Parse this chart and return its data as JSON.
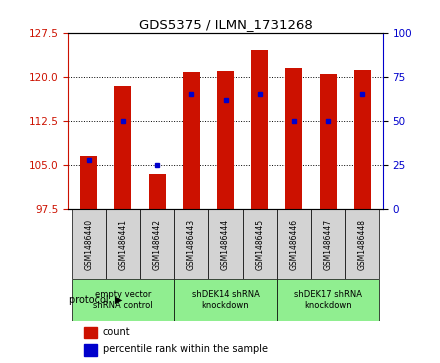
{
  "title": "GDS5375 / ILMN_1731268",
  "samples": [
    "GSM1486440",
    "GSM1486441",
    "GSM1486442",
    "GSM1486443",
    "GSM1486444",
    "GSM1486445",
    "GSM1486446",
    "GSM1486447",
    "GSM1486448"
  ],
  "bar_heights": [
    106.5,
    118.5,
    103.5,
    120.8,
    121.0,
    124.5,
    121.5,
    120.5,
    121.2
  ],
  "bar_base": 97.5,
  "percentile_pct": [
    28,
    50,
    25,
    65,
    62,
    65,
    50,
    50,
    65
  ],
  "bar_color": "#cc1100",
  "dot_color": "#0000cc",
  "ylim_left": [
    97.5,
    127.5
  ],
  "ylim_right": [
    0,
    100
  ],
  "yticks_left": [
    97.5,
    105.0,
    112.5,
    120.0,
    127.5
  ],
  "yticks_right": [
    0,
    25,
    50,
    75,
    100
  ],
  "groups": [
    {
      "label": "empty vector\nshRNA control",
      "start": 0,
      "end": 3,
      "color": "#90ee90"
    },
    {
      "label": "shDEK14 shRNA\nknockdown",
      "start": 3,
      "end": 6,
      "color": "#90ee90"
    },
    {
      "label": "shDEK17 shRNA\nknockdown",
      "start": 6,
      "end": 9,
      "color": "#90ee90"
    }
  ],
  "protocol_label": "protocol",
  "legend_count": "count",
  "legend_pct": "percentile rank within the sample",
  "background_color": "#ffffff",
  "tick_label_color_left": "#cc1100",
  "tick_label_color_right": "#0000cc",
  "sample_box_color": "#d3d3d3",
  "bar_width": 0.5
}
